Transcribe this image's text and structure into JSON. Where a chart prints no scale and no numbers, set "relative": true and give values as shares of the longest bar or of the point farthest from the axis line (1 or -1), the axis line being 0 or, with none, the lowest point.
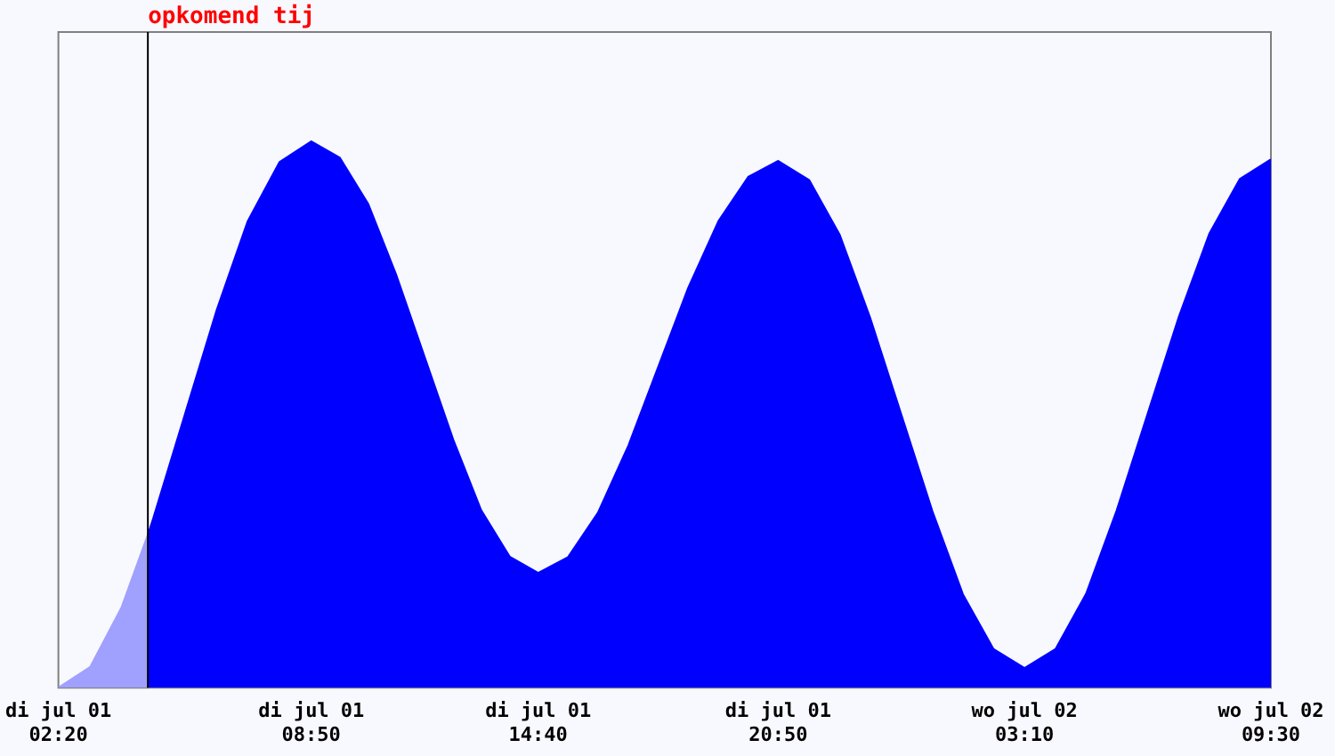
{
  "chart_data": {
    "type": "area",
    "relative": true,
    "xlim": [
      "--07-01T02:20",
      "--07-02T09:30"
    ],
    "xticks": [
      {
        "value": "--07-01T02:20",
        "label": "di jul 01\n02:20"
      },
      {
        "value": "--07-01T08:50",
        "label": "di jul 01\n08:50"
      },
      {
        "value": "--07-01T14:40",
        "label": "di jul 01\n14:40"
      },
      {
        "value": "--07-01T20:50",
        "label": "di jul 01\n20:50"
      },
      {
        "value": "--07-02T03:10",
        "label": "wo jul 02\n03:10"
      },
      {
        "value": "--07-02T09:30",
        "label": "wo jul 02\n09:30"
      }
    ],
    "series": [
      {
        "color": "#a0a0ff",
        "x": [
          "--07-01T02:20",
          "--07-01T03:09",
          "--07-01T03:57",
          "--07-01T04:38"
        ],
        "values": [
          0,
          0.038,
          0.146,
          0.28
        ]
      },
      {
        "color": "#0000ff",
        "x": [
          "--07-01T04:38",
          "--07-01T04:46",
          "--07-01T05:35",
          "--07-01T06:24",
          "--07-01T07:12",
          "--07-01T08:01",
          "--07-01T08:50",
          "--07-01T09:34",
          "--07-01T10:18",
          "--07-01T11:01",
          "--07-01T11:45",
          "--07-01T12:29",
          "--07-01T13:12",
          "--07-01T13:56",
          "--07-01T14:40",
          "--07-01T15:26",
          "--07-01T16:12",
          "--07-01T16:59",
          "--07-01T17:45",
          "--07-01T18:31",
          "--07-01T19:18",
          "--07-01T20:04",
          "--07-01T20:50",
          "--07-01T21:38",
          "--07-01T22:25",
          "--07-01T23:12",
          "--07-02T00:00",
          "--07-02T00:48",
          "--07-02T01:35",
          "--07-02T02:22",
          "--07-02T03:10",
          "--07-02T03:58",
          "--07-02T04:45",
          "--07-02T05:32",
          "--07-02T06:20",
          "--07-02T07:08",
          "--07-02T07:55",
          "--07-02T08:42",
          "--07-02T09:30"
        ],
        "values": [
          0.28,
          0.309,
          0.5,
          0.691,
          0.854,
          0.962,
          1,
          0.97,
          0.885,
          0.756,
          0.605,
          0.454,
          0.325,
          0.24,
          0.21,
          0.239,
          0.32,
          0.443,
          0.587,
          0.731,
          0.854,
          0.935,
          0.964,
          0.929,
          0.829,
          0.677,
          0.5,
          0.323,
          0.171,
          0.071,
          0.036,
          0.071,
          0.172,
          0.324,
          0.502,
          0.679,
          0.831,
          0.931,
          0.967
        ]
      }
    ],
    "ref_lines": [
      {
        "axis": "x",
        "value": "--07-01T04:38",
        "label": "opkomend tij",
        "color": "#000000"
      }
    ],
    "legend": false,
    "grid": false
  }
}
